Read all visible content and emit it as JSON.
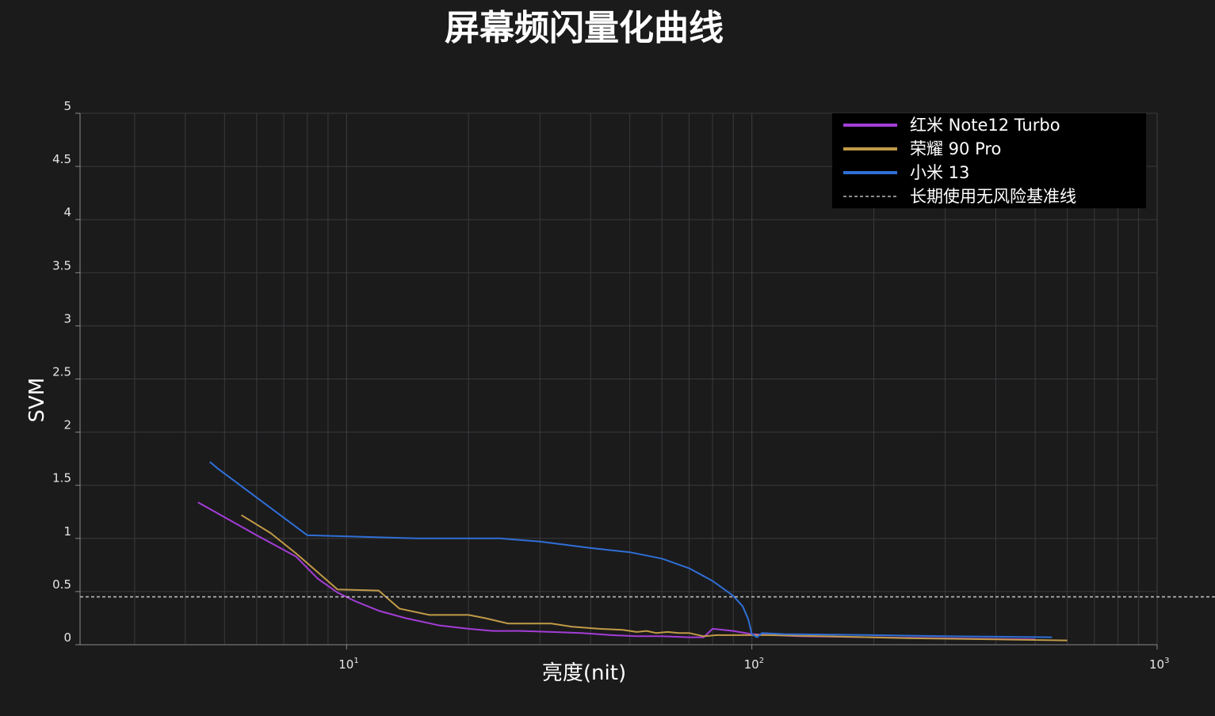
{
  "chart_data": {
    "type": "line",
    "title": "屏幕频闪量化曲线",
    "xlabel": "亮度(nit)",
    "ylabel": "SVM",
    "x_scale": "log",
    "xlim": [
      2.2,
      1000
    ],
    "ylim": [
      0,
      5
    ],
    "y_ticks": [
      "0",
      "0.5",
      "1",
      "1.5",
      "2",
      "2.5",
      "3",
      "3.5",
      "4",
      "4.5",
      "5"
    ],
    "x_tick_labels": [
      {
        "base": "10",
        "exp": "1"
      },
      {
        "base": "10",
        "exp": "2"
      },
      {
        "base": "10",
        "exp": "3"
      }
    ],
    "grid": true,
    "legend_position": "top-right",
    "colors": {
      "background": "#1b1b1c",
      "grid": "#3a3a3c",
      "axis": "#8a8a8a"
    },
    "series": [
      {
        "name": "红米 Note12 Turbo",
        "color": "#a43dd6",
        "points": [
          [
            4.3,
            1.34
          ],
          [
            5,
            1.2
          ],
          [
            6,
            1.03
          ],
          [
            7.5,
            0.83
          ],
          [
            8.5,
            0.62
          ],
          [
            9.5,
            0.49
          ],
          [
            10.5,
            0.41
          ],
          [
            12,
            0.32
          ],
          [
            14,
            0.25
          ],
          [
            17,
            0.18
          ],
          [
            20,
            0.15
          ],
          [
            23,
            0.13
          ],
          [
            27,
            0.13
          ],
          [
            32,
            0.12
          ],
          [
            38,
            0.11
          ],
          [
            45,
            0.09
          ],
          [
            52,
            0.08
          ],
          [
            60,
            0.08
          ],
          [
            70,
            0.07
          ],
          [
            73,
            0.07
          ],
          [
            76,
            0.07
          ],
          [
            80,
            0.15
          ],
          [
            85,
            0.14
          ],
          [
            90,
            0.13
          ],
          [
            100,
            0.1
          ],
          [
            130,
            0.08
          ],
          [
            200,
            0.07
          ],
          [
            300,
            0.06
          ],
          [
            500,
            0.05
          ]
        ]
      },
      {
        "name": "荣耀 90 Pro",
        "color": "#c09a46",
        "points": [
          [
            5.5,
            1.22
          ],
          [
            6.5,
            1.05
          ],
          [
            7.5,
            0.86
          ],
          [
            9.5,
            0.52
          ],
          [
            12,
            0.51
          ],
          [
            13.5,
            0.34
          ],
          [
            16,
            0.28
          ],
          [
            20,
            0.28
          ],
          [
            22,
            0.25
          ],
          [
            25,
            0.2
          ],
          [
            28,
            0.2
          ],
          [
            32,
            0.2
          ],
          [
            36,
            0.17
          ],
          [
            42,
            0.15
          ],
          [
            48,
            0.14
          ],
          [
            52,
            0.12
          ],
          [
            55,
            0.13
          ],
          [
            58,
            0.11
          ],
          [
            62,
            0.12
          ],
          [
            66,
            0.11
          ],
          [
            70,
            0.11
          ],
          [
            76,
            0.08
          ],
          [
            82,
            0.09
          ],
          [
            90,
            0.09
          ],
          [
            110,
            0.09
          ],
          [
            150,
            0.08
          ],
          [
            250,
            0.06
          ],
          [
            400,
            0.05
          ],
          [
            600,
            0.04
          ]
        ]
      },
      {
        "name": "小米 13",
        "color": "#2f6fd6",
        "points": [
          [
            4.6,
            1.72
          ],
          [
            4.8,
            1.66
          ],
          [
            8,
            1.03
          ],
          [
            15,
            1.0
          ],
          [
            20,
            1.0
          ],
          [
            24,
            1.0
          ],
          [
            30,
            0.97
          ],
          [
            40,
            0.91
          ],
          [
            50,
            0.87
          ],
          [
            60,
            0.81
          ],
          [
            70,
            0.72
          ],
          [
            80,
            0.6
          ],
          [
            90,
            0.46
          ],
          [
            95,
            0.36
          ],
          [
            98,
            0.24
          ],
          [
            100,
            0.1
          ],
          [
            103,
            0.07
          ],
          [
            106,
            0.11
          ],
          [
            120,
            0.1
          ],
          [
            200,
            0.09
          ],
          [
            300,
            0.08
          ],
          [
            550,
            0.07
          ]
        ]
      }
    ],
    "reference_line": {
      "name": "长期使用无风险基准线",
      "y": 0.45,
      "color": "#bbbbbb",
      "style": "dashed"
    }
  }
}
